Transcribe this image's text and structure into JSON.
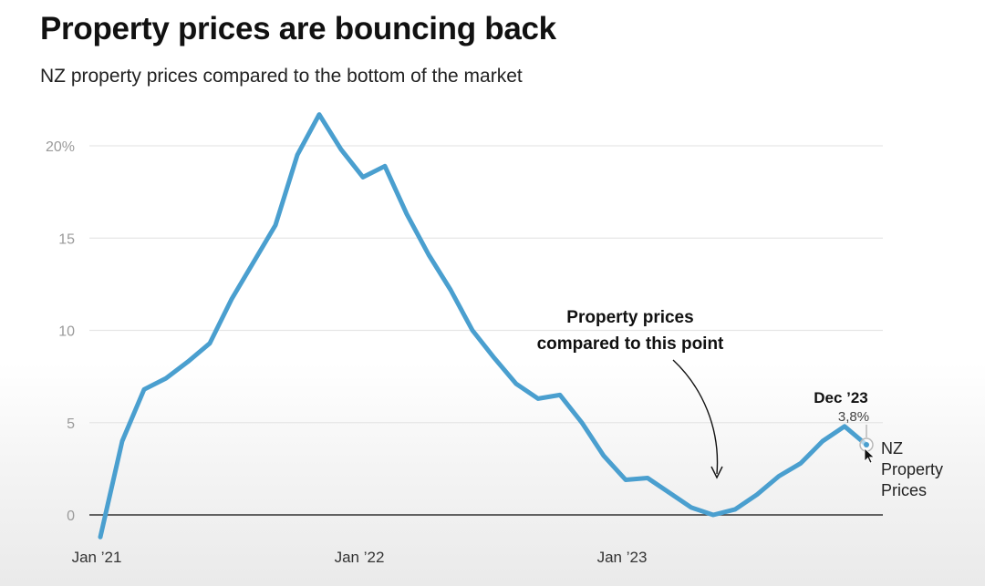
{
  "title": "Property prices are bouncing back",
  "subtitle": "NZ property prices compared to the bottom of the market",
  "colors": {
    "line": "#4a9fcf",
    "grid": "#e6e6e6",
    "zero": "#333333"
  },
  "annotation": {
    "lines": [
      "Property prices",
      "compared to this point"
    ]
  },
  "end_label": {
    "date": "Dec ’23",
    "value": "3,8%",
    "series_lines": [
      "NZ",
      "Property",
      "Prices"
    ]
  },
  "chart_data": {
    "type": "line",
    "title": "Property prices are bouncing back",
    "subtitle": "NZ property prices compared to the bottom of the market",
    "x_tick_labels": [
      "Jan ’21",
      "Jan ’22",
      "Jan ’23"
    ],
    "y_tick_labels": [
      "0",
      "5",
      "10",
      "15",
      "20%"
    ],
    "y_ticks": [
      0,
      5,
      10,
      15,
      20
    ],
    "ylim": [
      -1.2,
      22
    ],
    "xlim": [
      "2021-01",
      "2023-12"
    ],
    "grid": true,
    "series": [
      {
        "name": "NZ Property Prices",
        "x": [
          "2021-01",
          "2021-02",
          "2021-03",
          "2021-04",
          "2021-05",
          "2021-06",
          "2021-07",
          "2021-08",
          "2021-09",
          "2021-10",
          "2021-11",
          "2021-12",
          "2022-01",
          "2022-02",
          "2022-03",
          "2022-04",
          "2022-05",
          "2022-06",
          "2022-07",
          "2022-08",
          "2022-09",
          "2022-10",
          "2022-11",
          "2022-12",
          "2023-01",
          "2023-02",
          "2023-03",
          "2023-04",
          "2023-05",
          "2023-06",
          "2023-07",
          "2023-08",
          "2023-09",
          "2023-10",
          "2023-11",
          "2023-12"
        ],
        "values": [
          -1.2,
          4.0,
          6.8,
          7.4,
          8.3,
          9.3,
          11.7,
          13.7,
          15.7,
          19.5,
          21.7,
          19.8,
          18.3,
          18.9,
          16.3,
          14.1,
          12.2,
          10.0,
          8.5,
          7.1,
          6.3,
          6.5,
          5.0,
          3.2,
          1.9,
          2.0,
          1.2,
          0.4,
          0.0,
          0.3,
          1.1,
          2.1,
          2.8,
          4.0,
          4.8,
          3.8
        ]
      }
    ],
    "annotations": [
      {
        "text": "Property prices compared to this point",
        "x": "2023-05",
        "y": 0.0
      },
      {
        "text": "Dec ’23 3,8%",
        "x": "2023-12",
        "y": 3.8
      }
    ]
  }
}
